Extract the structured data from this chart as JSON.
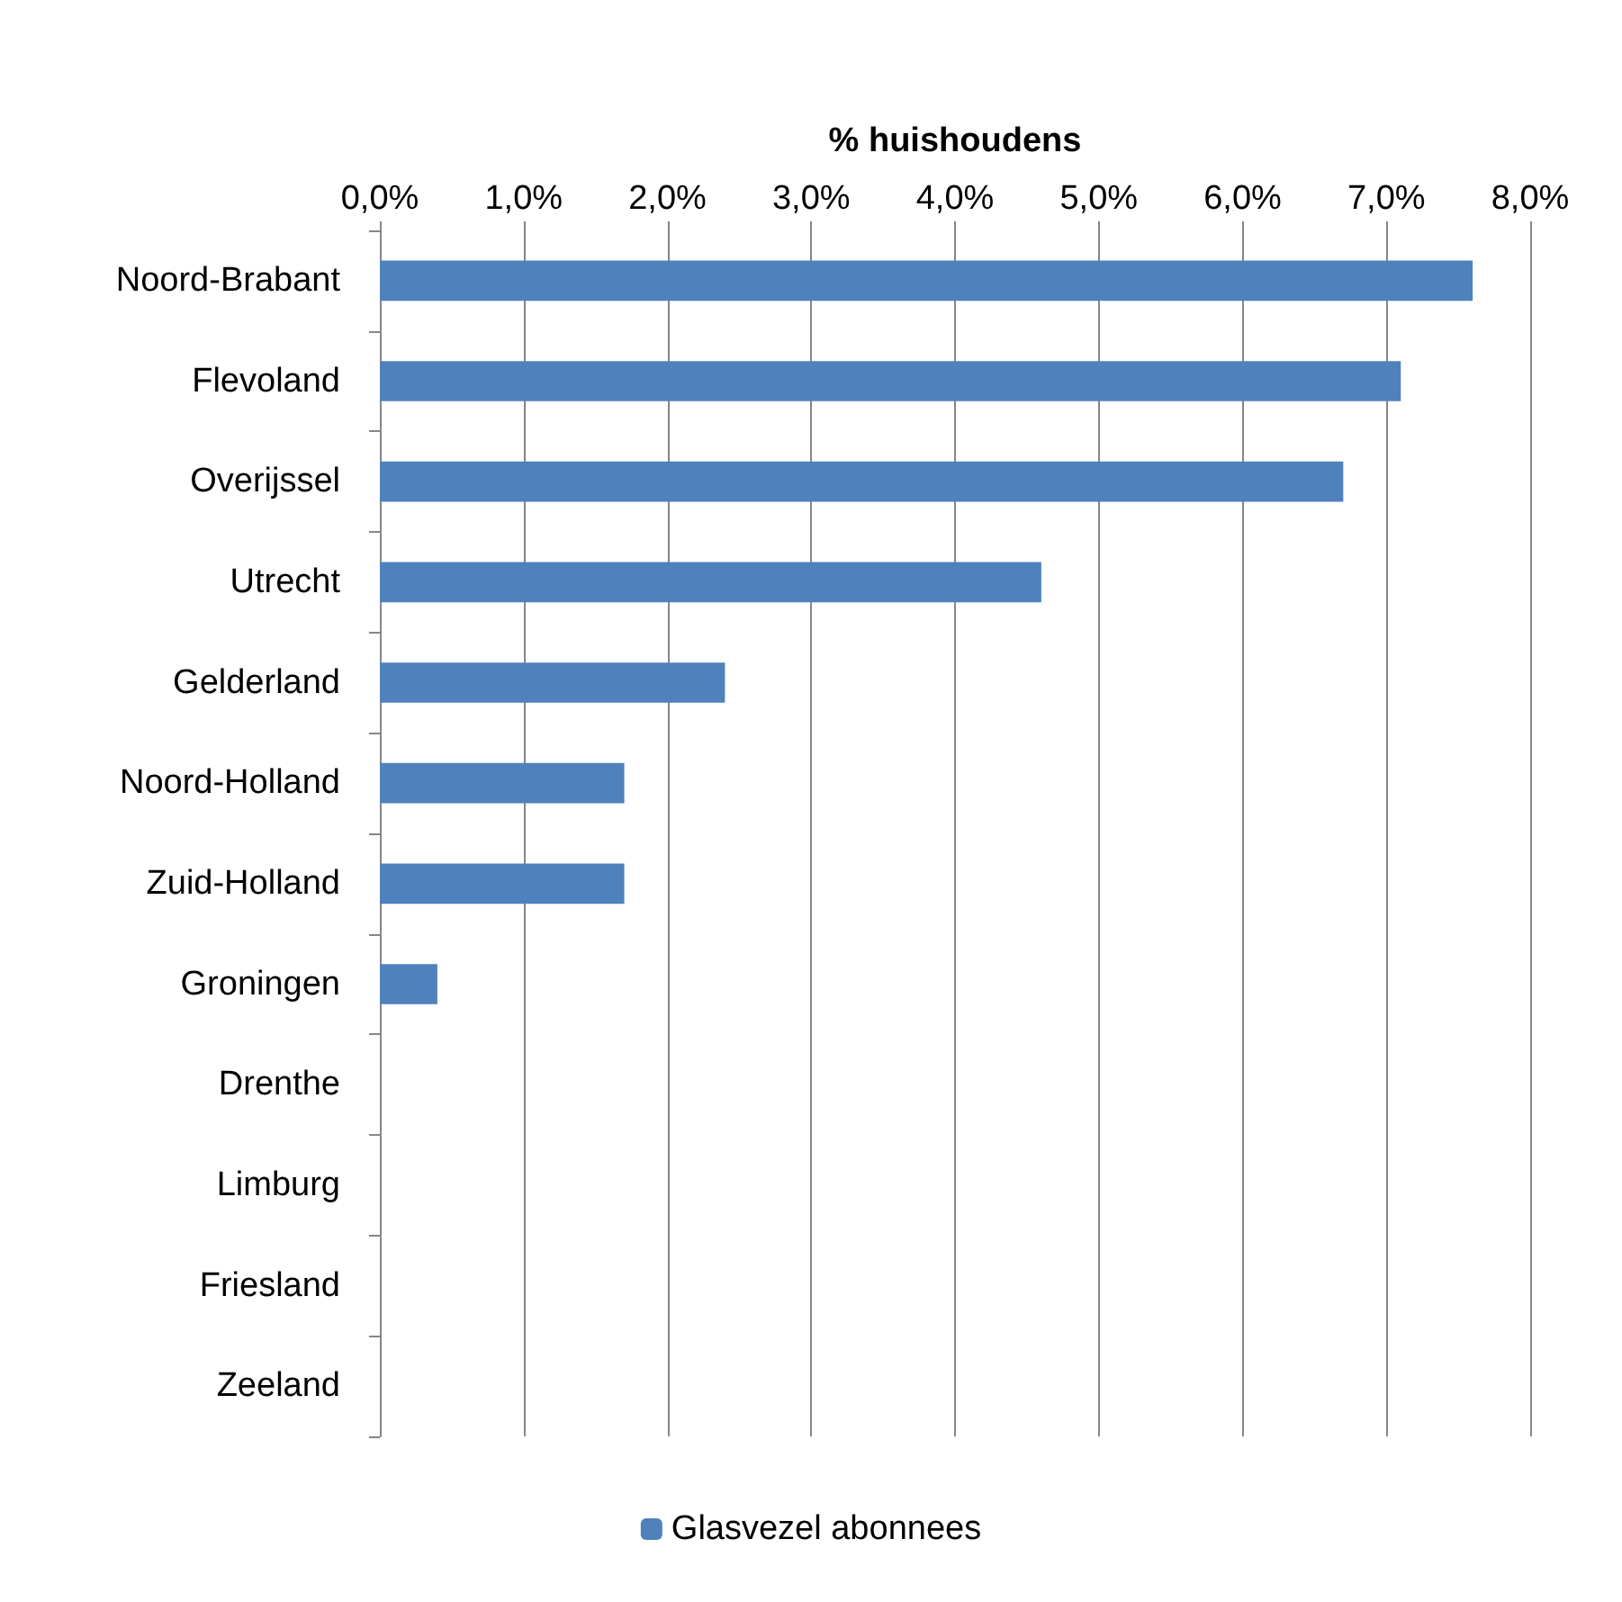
{
  "chart_data": {
    "type": "bar",
    "orientation": "horizontal",
    "xlabel": "% huishoudens",
    "categories": [
      "Noord-Brabant",
      "Flevoland",
      "Overijssel",
      "Utrecht",
      "Gelderland",
      "Noord-Holland",
      "Zuid-Holland",
      "Groningen",
      "Drenthe",
      "Limburg",
      "Friesland",
      "Zeeland"
    ],
    "series": [
      {
        "name": "Glasvezel abonnees",
        "color": "#4f81bd",
        "values": [
          7.6,
          7.1,
          6.7,
          4.6,
          2.4,
          1.7,
          1.7,
          0.4,
          0,
          0,
          0,
          0
        ]
      }
    ],
    "xlim": [
      0,
      8
    ],
    "xticks": [
      {
        "value": 0,
        "label": "0,0%"
      },
      {
        "value": 1,
        "label": "1,0%"
      },
      {
        "value": 2,
        "label": "2,0%"
      },
      {
        "value": 3,
        "label": "3,0%"
      },
      {
        "value": 4,
        "label": "4,0%"
      },
      {
        "value": 5,
        "label": "5,0%"
      },
      {
        "value": 6,
        "label": "6,0%"
      },
      {
        "value": 7,
        "label": "7,0%"
      },
      {
        "value": 8,
        "label": "8,0%"
      }
    ],
    "grid": "x",
    "legend": "bottom"
  }
}
